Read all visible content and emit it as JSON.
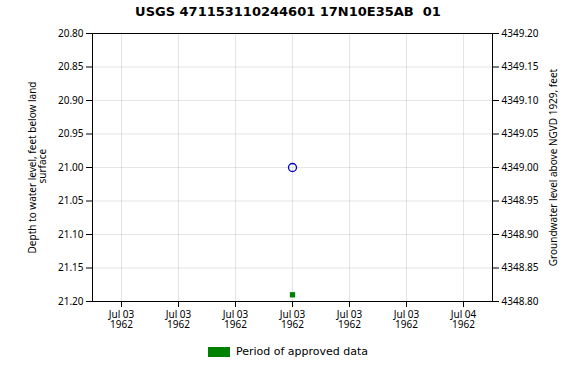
{
  "chart_data": {
    "type": "scatter",
    "title": "USGS 471153110244601 17N10E35AB  01",
    "ylabel": "Depth to water level, feet below land\n surface",
    "y2label": "Groundwater level above NGVD 1929, feet",
    "categories": [
      "Jul 03\n1962",
      "Jul 03\n1962",
      "Jul 03\n1962",
      "Jul 03\n1962",
      "Jul 03\n1962",
      "Jul 03\n1962",
      "Jul 04\n1962"
    ],
    "series": [
      {
        "values": [
          null,
          null,
          null,
          21.0,
          null,
          null,
          null
        ],
        "color": "#0000cc",
        "marker": "open_circle"
      },
      {
        "name": "Period of approved data",
        "values": [
          null,
          null,
          null,
          21.19,
          null,
          null,
          null
        ],
        "color": "#008000",
        "marker": "square"
      }
    ],
    "ylim": [
      21.2,
      20.8
    ],
    "yticks": [
      {
        "value": 20.8,
        "label": "20.80"
      },
      20.85,
      {
        "value": 20.9,
        "label": "20.90"
      },
      20.95,
      {
        "value": 21.0,
        "label": "21.00"
      },
      21.05,
      {
        "value": 21.1,
        "label": "21.10"
      },
      21.15,
      {
        "value": 21.2,
        "label": "21.20"
      }
    ],
    "y2lim": [
      4348.8,
      4349.2
    ],
    "y2ticks": [
      {
        "value": 4349.2,
        "label": "4349.20"
      },
      4349.15,
      {
        "value": 4349.1,
        "label": "4349.10"
      },
      4349.05,
      {
        "value": 4349.0,
        "label": "4349.00"
      },
      4348.95,
      {
        "value": 4348.9,
        "label": "4348.90"
      },
      4348.85,
      {
        "value": 4348.8,
        "label": "4348.80"
      }
    ],
    "grid": true,
    "legend": "bottom"
  }
}
